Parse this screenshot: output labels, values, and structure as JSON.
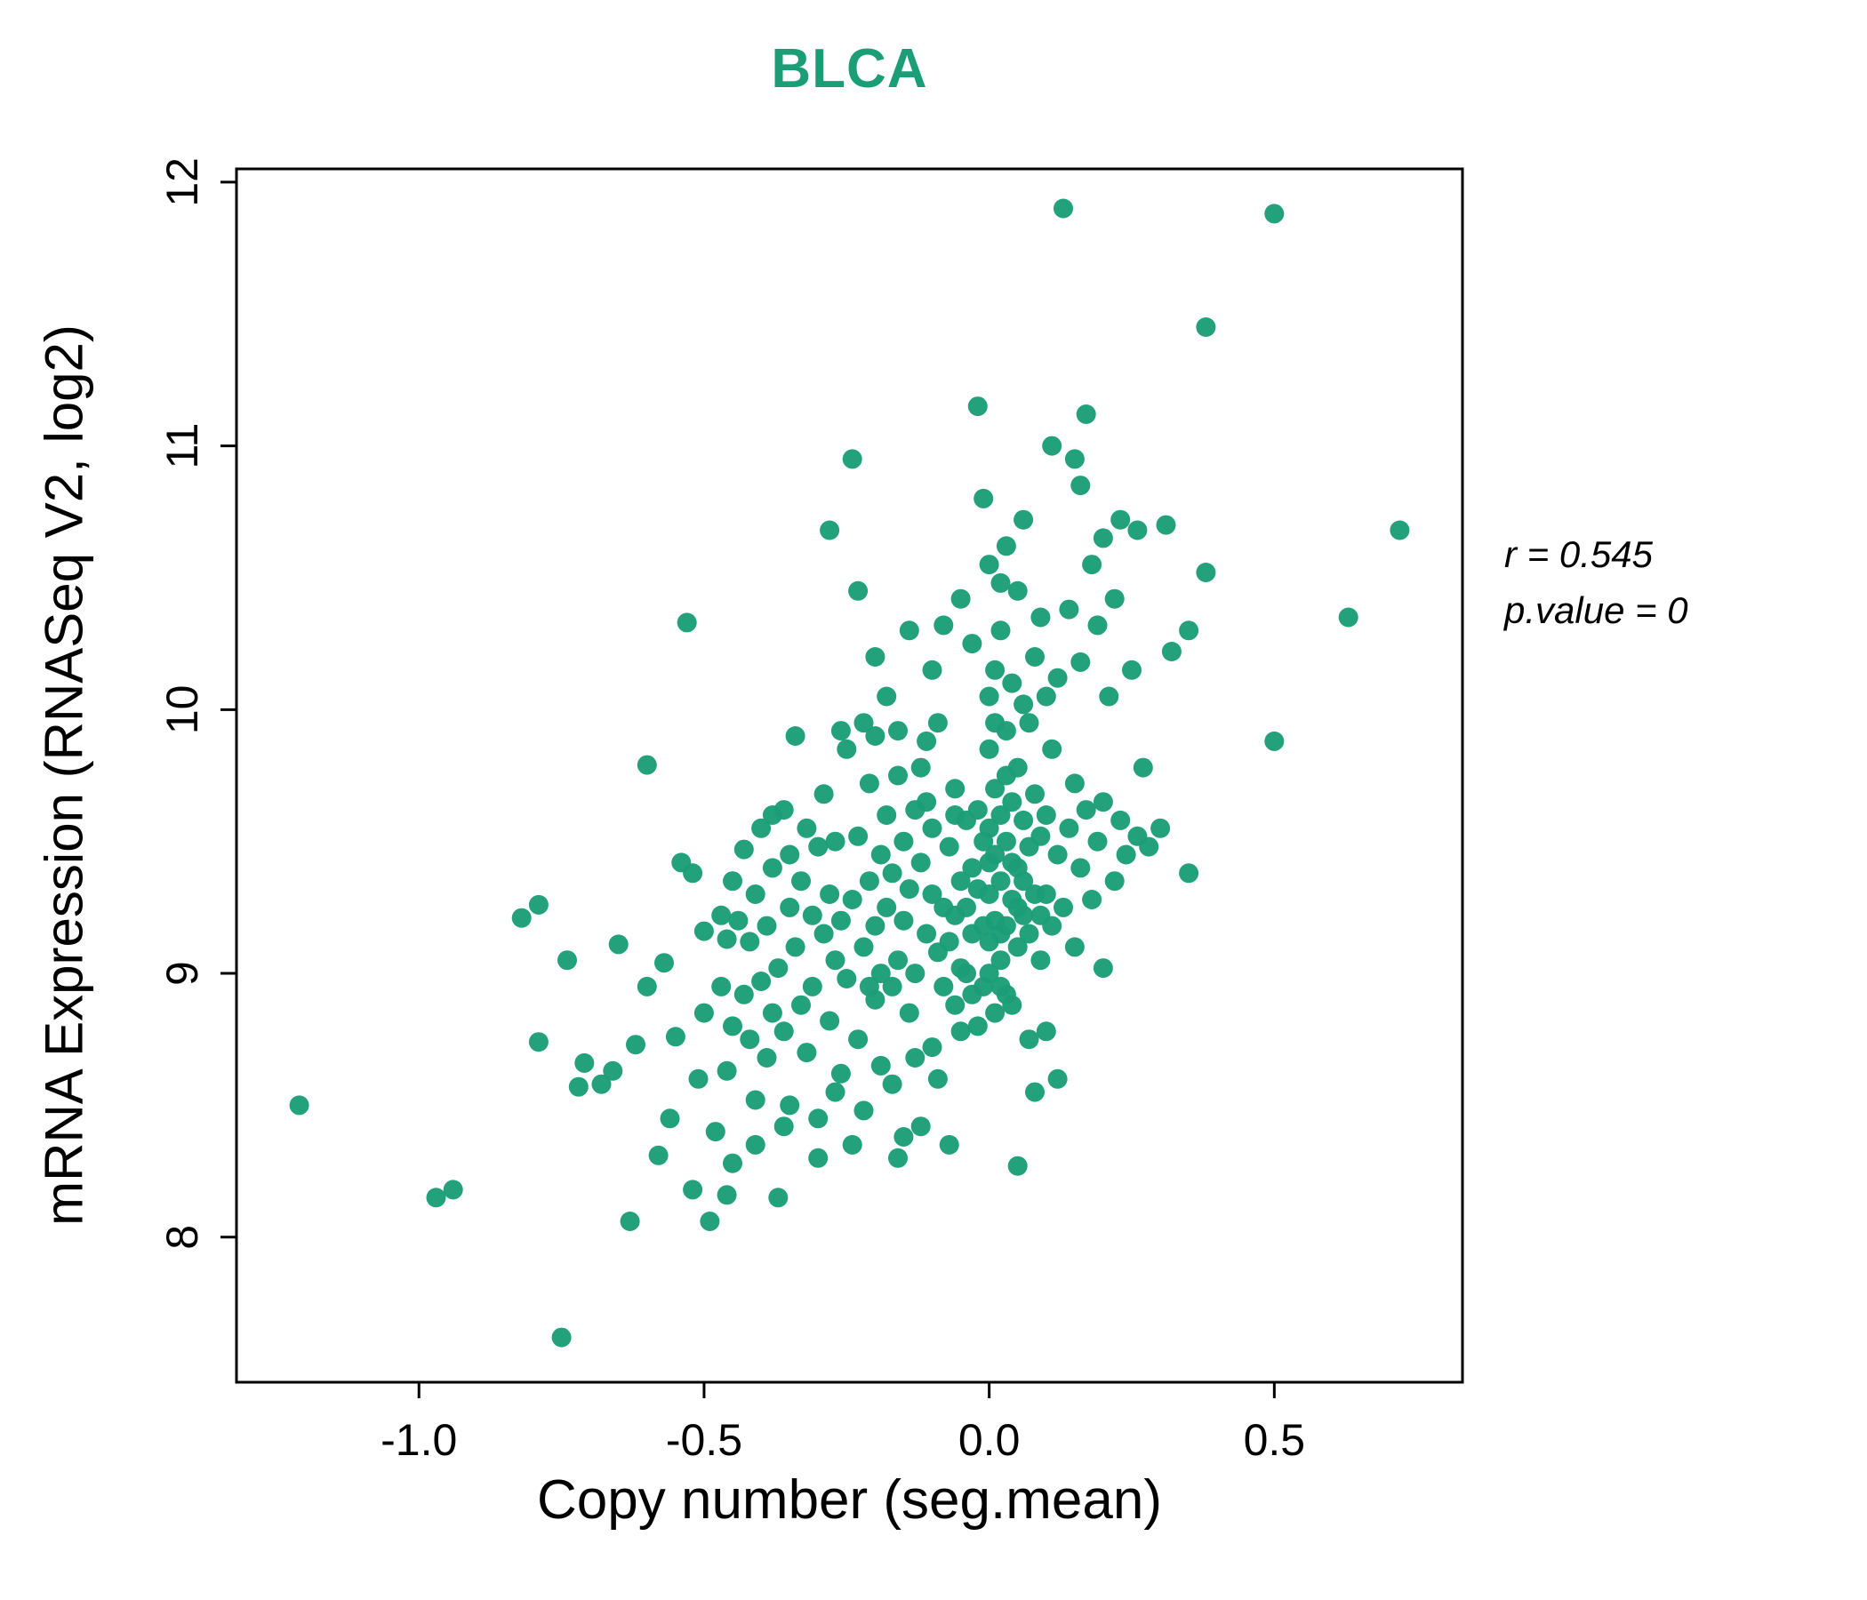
{
  "page": {
    "background": "#ffffff"
  },
  "chart": {
    "title": "BLCA",
    "title_color": "#1b9e77",
    "xlabel": "Copy number (seg.mean)",
    "ylabel": "mRNA Expression (RNASeq V2, log2)",
    "annotation": {
      "r_line": "r = 0.545",
      "p_line": "p.value = 0"
    }
  },
  "chart_data": {
    "type": "scatter",
    "title": "BLCA",
    "xlabel": "Copy number (seg.mean)",
    "ylabel": "mRNA Expression (RNASeq V2, log2)",
    "xlim": [
      -1.32,
      0.83
    ],
    "ylim": [
      7.45,
      12.05
    ],
    "x_ticks": [
      -1.0,
      -0.5,
      0.0,
      0.5
    ],
    "x_tick_labels": [
      "-1.0",
      "-0.5",
      "0.0",
      "0.5"
    ],
    "y_ticks": [
      8,
      9,
      10,
      11,
      12
    ],
    "y_tick_labels": [
      "8",
      "9",
      "10",
      "11",
      "12"
    ],
    "grid": false,
    "legend": "none",
    "point_color": "#1b9e77",
    "correlation_r": 0.545,
    "p_value": 0,
    "points": [
      [
        -1.21,
        8.5
      ],
      [
        -0.97,
        8.15
      ],
      [
        -0.94,
        8.18
      ],
      [
        -0.82,
        9.21
      ],
      [
        -0.79,
        9.26
      ],
      [
        -0.79,
        8.74
      ],
      [
        -0.75,
        7.62
      ],
      [
        -0.72,
        8.57
      ],
      [
        -0.74,
        9.05
      ],
      [
        -0.71,
        8.66
      ],
      [
        -0.68,
        8.58
      ],
      [
        -0.66,
        8.63
      ],
      [
        -0.65,
        9.11
      ],
      [
        -0.63,
        8.06
      ],
      [
        -0.62,
        8.73
      ],
      [
        -0.6,
        9.79
      ],
      [
        -0.6,
        8.95
      ],
      [
        -0.58,
        8.31
      ],
      [
        -0.57,
        9.04
      ],
      [
        -0.56,
        8.45
      ],
      [
        -0.55,
        8.76
      ],
      [
        -0.54,
        9.42
      ],
      [
        -0.53,
        10.33
      ],
      [
        -0.52,
        8.18
      ],
      [
        -0.52,
        9.38
      ],
      [
        -0.51,
        8.6
      ],
      [
        -0.5,
        8.85
      ],
      [
        -0.5,
        9.16
      ],
      [
        -0.49,
        8.06
      ],
      [
        -0.48,
        8.4
      ],
      [
        -0.47,
        8.95
      ],
      [
        -0.47,
        9.22
      ],
      [
        -0.46,
        8.63
      ],
      [
        -0.46,
        9.13
      ],
      [
        -0.45,
        8.8
      ],
      [
        -0.45,
        9.35
      ],
      [
        -0.45,
        8.28
      ],
      [
        -0.46,
        8.16
      ],
      [
        -0.44,
        9.2
      ],
      [
        -0.43,
        8.92
      ],
      [
        -0.43,
        9.47
      ],
      [
        -0.42,
        8.75
      ],
      [
        -0.42,
        9.12
      ],
      [
        -0.41,
        8.52
      ],
      [
        -0.41,
        9.3
      ],
      [
        -0.4,
        8.97
      ],
      [
        -0.4,
        9.55
      ],
      [
        -0.39,
        8.68
      ],
      [
        -0.39,
        9.18
      ],
      [
        -0.38,
        8.85
      ],
      [
        -0.38,
        9.4
      ],
      [
        -0.37,
        8.15
      ],
      [
        -0.37,
        9.02
      ],
      [
        -0.36,
        9.62
      ],
      [
        -0.36,
        8.78
      ],
      [
        -0.35,
        9.25
      ],
      [
        -0.35,
        8.5
      ],
      [
        -0.34,
        9.9
      ],
      [
        -0.34,
        9.1
      ],
      [
        -0.33,
        8.88
      ],
      [
        -0.33,
        9.35
      ],
      [
        -0.32,
        9.55
      ],
      [
        -0.32,
        8.7
      ],
      [
        -0.31,
        9.22
      ],
      [
        -0.31,
        8.95
      ],
      [
        -0.3,
        9.48
      ],
      [
        -0.3,
        8.45
      ],
      [
        -0.29,
        9.15
      ],
      [
        -0.29,
        9.68
      ],
      [
        -0.28,
        8.82
      ],
      [
        -0.28,
        9.3
      ],
      [
        -0.27,
        9.05
      ],
      [
        -0.27,
        9.5
      ],
      [
        -0.26,
        8.62
      ],
      [
        -0.26,
        9.2
      ],
      [
        -0.25,
        9.85
      ],
      [
        -0.25,
        8.98
      ],
      [
        -0.28,
        10.68
      ],
      [
        -0.24,
        10.95
      ],
      [
        -0.26,
        9.92
      ],
      [
        -0.3,
        8.3
      ],
      [
        -0.35,
        9.45
      ],
      [
        -0.38,
        9.6
      ],
      [
        -0.41,
        8.35
      ],
      [
        -0.36,
        8.42
      ],
      [
        -0.27,
        8.55
      ],
      [
        -0.24,
        9.28
      ],
      [
        -0.23,
        8.75
      ],
      [
        -0.23,
        9.52
      ],
      [
        -0.22,
        9.1
      ],
      [
        -0.22,
        8.48
      ],
      [
        -0.21,
        9.35
      ],
      [
        -0.21,
        9.72
      ],
      [
        -0.2,
        8.9
      ],
      [
        -0.2,
        9.18
      ],
      [
        -0.2,
        10.2
      ],
      [
        -0.19,
        9.45
      ],
      [
        -0.19,
        8.65
      ],
      [
        -0.18,
        9.25
      ],
      [
        -0.18,
        9.6
      ],
      [
        -0.17,
        8.95
      ],
      [
        -0.17,
        9.38
      ],
      [
        -0.16,
        9.05
      ],
      [
        -0.16,
        9.75
      ],
      [
        -0.15,
        8.38
      ],
      [
        -0.15,
        9.2
      ],
      [
        -0.15,
        9.5
      ],
      [
        -0.14,
        8.85
      ],
      [
        -0.14,
        9.32
      ],
      [
        -0.13,
        9.62
      ],
      [
        -0.13,
        9.0
      ],
      [
        -0.12,
        9.42
      ],
      [
        -0.12,
        8.42
      ],
      [
        -0.11,
        9.15
      ],
      [
        -0.11,
        9.88
      ],
      [
        -0.1,
        9.3
      ],
      [
        -0.1,
        8.72
      ],
      [
        -0.1,
        9.55
      ],
      [
        -0.09,
        9.08
      ],
      [
        -0.09,
        9.95
      ],
      [
        -0.08,
        9.25
      ],
      [
        -0.08,
        8.95
      ],
      [
        -0.07,
        9.48
      ],
      [
        -0.07,
        9.12
      ],
      [
        -0.06,
        9.7
      ],
      [
        -0.06,
        8.88
      ],
      [
        -0.05,
        9.35
      ],
      [
        -0.05,
        9.02
      ],
      [
        -0.23,
        10.45
      ],
      [
        -0.2,
        9.9
      ],
      [
        -0.18,
        10.05
      ],
      [
        -0.16,
        8.3
      ],
      [
        -0.14,
        10.3
      ],
      [
        -0.12,
        9.78
      ],
      [
        -0.1,
        10.15
      ],
      [
        -0.08,
        10.32
      ],
      [
        -0.06,
        9.6
      ],
      [
        -0.19,
        9.0
      ],
      [
        -0.17,
        8.58
      ],
      [
        -0.13,
        8.68
      ],
      [
        -0.09,
        8.6
      ],
      [
        -0.07,
        8.35
      ],
      [
        -0.11,
        9.65
      ],
      [
        -0.21,
        8.95
      ],
      [
        -0.22,
        9.95
      ],
      [
        -0.16,
        9.92
      ],
      [
        -0.05,
        10.42
      ],
      [
        -0.05,
        8.78
      ],
      [
        -0.06,
        9.22
      ],
      [
        -0.24,
        8.35
      ],
      [
        0,
        9.12
      ],
      [
        0,
        9.3
      ],
      [
        0,
        9.55
      ],
      [
        0,
        9.85
      ],
      [
        0,
        10.05
      ],
      [
        0.01,
        9.2
      ],
      [
        0.01,
        9.45
      ],
      [
        0.01,
        9.7
      ],
      [
        0.01,
        10.15
      ],
      [
        0.02,
        9.05
      ],
      [
        0.02,
        9.35
      ],
      [
        0.02,
        9.6
      ],
      [
        0.02,
        10.3
      ],
      [
        0.03,
        9.18
      ],
      [
        0.03,
        9.5
      ],
      [
        0.03,
        9.92
      ],
      [
        0.03,
        8.92
      ],
      [
        0.04,
        9.28
      ],
      [
        0.04,
        9.65
      ],
      [
        0.04,
        10.1
      ],
      [
        0.05,
        9.1
      ],
      [
        0.05,
        9.4
      ],
      [
        0.05,
        9.78
      ],
      [
        0.05,
        10.45
      ],
      [
        0.06,
        9.22
      ],
      [
        0.06,
        9.58
      ],
      [
        0.06,
        10.02
      ],
      [
        0.07,
        9.15
      ],
      [
        0.07,
        9.48
      ],
      [
        0.07,
        9.95
      ],
      [
        0.08,
        9.3
      ],
      [
        0.08,
        9.68
      ],
      [
        0.08,
        10.2
      ],
      [
        0.09,
        9.05
      ],
      [
        0.09,
        9.52
      ],
      [
        0.09,
        10.35
      ],
      [
        -0.04,
        9.25
      ],
      [
        -0.04,
        9.58
      ],
      [
        -0.04,
        9.0
      ],
      [
        -0.03,
        9.4
      ],
      [
        -0.03,
        9.15
      ],
      [
        -0.03,
        10.25
      ],
      [
        -0.02,
        9.32
      ],
      [
        -0.02,
        9.62
      ],
      [
        -0.02,
        11.15
      ],
      [
        -0.01,
        9.18
      ],
      [
        -0.01,
        9.5
      ],
      [
        -0.01,
        10.8
      ],
      [
        0,
        10.55
      ],
      [
        0.01,
        8.85
      ],
      [
        0.02,
        8.95
      ],
      [
        0.04,
        8.88
      ],
      [
        0.05,
        8.27
      ],
      [
        0.03,
        10.62
      ],
      [
        0.06,
        10.72
      ],
      [
        0.02,
        10.48
      ],
      [
        0,
        9.0
      ],
      [
        0.01,
        9.95
      ],
      [
        0.04,
        9.42
      ],
      [
        0.07,
        8.75
      ],
      [
        0.08,
        8.55
      ],
      [
        -0.01,
        8.95
      ],
      [
        -0.02,
        8.8
      ],
      [
        -0.03,
        8.92
      ],
      [
        0.05,
        9.25
      ],
      [
        0.06,
        9.35
      ],
      [
        0.09,
        9.22
      ],
      [
        0.03,
        9.75
      ],
      [
        0,
        9.42
      ],
      [
        0.02,
        9.15
      ],
      [
        0.1,
        9.3
      ],
      [
        0.1,
        9.6
      ],
      [
        0.1,
        10.05
      ],
      [
        0.11,
        9.18
      ],
      [
        0.11,
        9.85
      ],
      [
        0.12,
        9.45
      ],
      [
        0.12,
        10.12
      ],
      [
        0.13,
        9.25
      ],
      [
        0.13,
        11.9
      ],
      [
        0.14,
        9.55
      ],
      [
        0.14,
        10.38
      ],
      [
        0.15,
        9.1
      ],
      [
        0.15,
        9.72
      ],
      [
        0.15,
        10.95
      ],
      [
        0.16,
        9.4
      ],
      [
        0.16,
        10.18
      ],
      [
        0.17,
        9.62
      ],
      [
        0.17,
        11.12
      ],
      [
        0.18,
        9.28
      ],
      [
        0.18,
        10.55
      ],
      [
        0.19,
        9.5
      ],
      [
        0.19,
        10.32
      ],
      [
        0.2,
        9.02
      ],
      [
        0.2,
        9.65
      ],
      [
        0.2,
        10.65
      ],
      [
        0.21,
        10.05
      ],
      [
        0.22,
        9.35
      ],
      [
        0.22,
        10.42
      ],
      [
        0.23,
        9.58
      ],
      [
        0.23,
        10.72
      ],
      [
        0.24,
        9.45
      ],
      [
        0.25,
        10.15
      ],
      [
        0.26,
        9.52
      ],
      [
        0.26,
        10.68
      ],
      [
        0.27,
        9.78
      ],
      [
        0.28,
        9.48
      ],
      [
        0.1,
        8.78
      ],
      [
        0.12,
        8.6
      ],
      [
        0.11,
        11.0
      ],
      [
        0.16,
        10.85
      ],
      [
        0.3,
        9.55
      ],
      [
        0.31,
        10.7
      ],
      [
        0.32,
        10.22
      ],
      [
        0.35,
        9.38
      ],
      [
        0.35,
        10.3
      ],
      [
        0.38,
        11.45
      ],
      [
        0.38,
        10.52
      ],
      [
        0.5,
        11.88
      ],
      [
        0.5,
        9.88
      ],
      [
        0.63,
        10.35
      ],
      [
        0.72,
        10.68
      ]
    ]
  }
}
